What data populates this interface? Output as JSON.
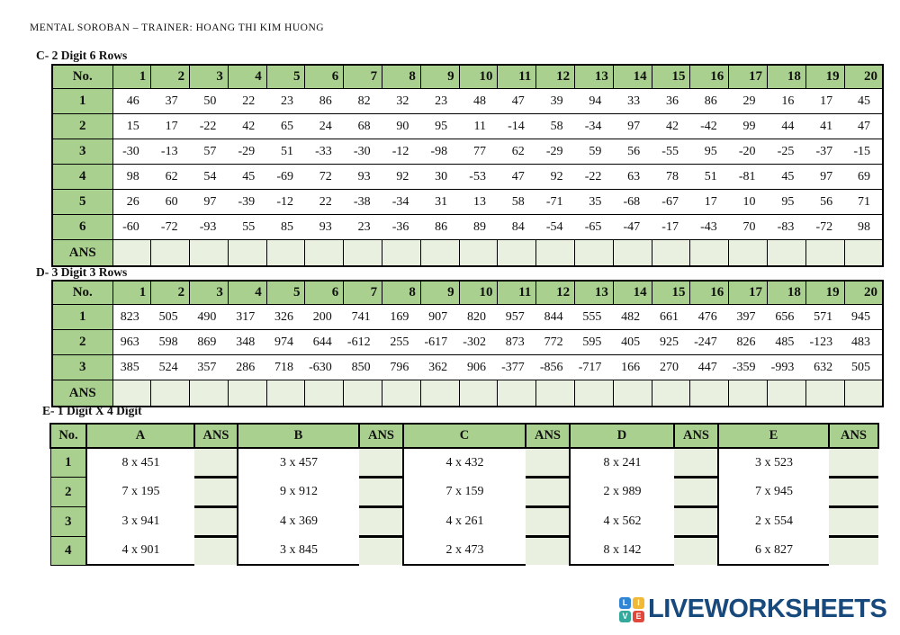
{
  "page": {
    "title": "MENTAL SOROBAN – TRAINER: HOANG THI KIM HUONG"
  },
  "colors": {
    "header_green": "#a9d08e",
    "ans_green": "#e9f0df",
    "border": "#000000",
    "logo_navy": "#17497d"
  },
  "table_c": {
    "section_label": "C- 2 Digit 6 Rows",
    "no_header": "No.",
    "ans_label": "ANS",
    "columns": [
      "1",
      "2",
      "3",
      "4",
      "5",
      "6",
      "7",
      "8",
      "9",
      "10",
      "11",
      "12",
      "13",
      "14",
      "15",
      "16",
      "17",
      "18",
      "19",
      "20"
    ],
    "rows": [
      {
        "label": "1",
        "values": [
          46,
          37,
          50,
          22,
          23,
          86,
          82,
          32,
          23,
          48,
          47,
          39,
          94,
          33,
          36,
          86,
          29,
          16,
          17,
          45
        ]
      },
      {
        "label": "2",
        "values": [
          15,
          17,
          -22,
          42,
          65,
          24,
          68,
          90,
          95,
          11,
          -14,
          58,
          -34,
          97,
          42,
          -42,
          99,
          44,
          41,
          47
        ]
      },
      {
        "label": "3",
        "values": [
          -30,
          -13,
          57,
          -29,
          51,
          -33,
          -30,
          -12,
          -98,
          77,
          62,
          -29,
          59,
          56,
          -55,
          95,
          -20,
          -25,
          -37,
          -15
        ]
      },
      {
        "label": "4",
        "values": [
          98,
          62,
          54,
          45,
          -69,
          72,
          93,
          92,
          30,
          -53,
          47,
          92,
          -22,
          63,
          78,
          51,
          -81,
          45,
          97,
          69
        ]
      },
      {
        "label": "5",
        "values": [
          26,
          60,
          97,
          -39,
          -12,
          22,
          -38,
          -34,
          31,
          13,
          58,
          -71,
          35,
          -68,
          -67,
          17,
          10,
          95,
          56,
          71
        ]
      },
      {
        "label": "6",
        "values": [
          -60,
          -72,
          -93,
          55,
          85,
          93,
          23,
          -36,
          86,
          89,
          84,
          -54,
          -65,
          -47,
          -17,
          -43,
          70,
          -83,
          -72,
          98
        ]
      }
    ]
  },
  "table_d": {
    "section_label": "D- 3 Digit 3 Rows",
    "no_header": "No.",
    "ans_label": "ANS",
    "columns": [
      "1",
      "2",
      "3",
      "4",
      "5",
      "6",
      "7",
      "8",
      "9",
      "10",
      "11",
      "12",
      "13",
      "14",
      "15",
      "16",
      "17",
      "18",
      "19",
      "20"
    ],
    "rows": [
      {
        "label": "1",
        "values": [
          823,
          505,
          490,
          317,
          326,
          200,
          741,
          169,
          907,
          820,
          957,
          844,
          555,
          482,
          661,
          476,
          397,
          656,
          571,
          945
        ]
      },
      {
        "label": "2",
        "values": [
          963,
          598,
          869,
          348,
          974,
          644,
          -612,
          255,
          -617,
          -302,
          873,
          772,
          595,
          405,
          925,
          -247,
          826,
          485,
          -123,
          483
        ]
      },
      {
        "label": "3",
        "values": [
          385,
          524,
          357,
          286,
          718,
          -630,
          850,
          796,
          362,
          906,
          -377,
          -856,
          -717,
          166,
          270,
          447,
          -359,
          -993,
          632,
          505
        ]
      }
    ]
  },
  "table_e": {
    "section_label": "E- 1 Digit X 4 Digit",
    "no_header": "No.",
    "ans_header": "ANS",
    "group_headers": [
      "A",
      "B",
      "C",
      "D",
      "E"
    ],
    "rows": [
      {
        "label": "1",
        "expressions": [
          "8 x 451",
          "3 x 457",
          "4 x 432",
          "8 x 241",
          "3 x 523"
        ]
      },
      {
        "label": "2",
        "expressions": [
          "7 x 195",
          "9 x 912",
          "7 x 159",
          "2 x 989",
          "7 x 945"
        ]
      },
      {
        "label": "3",
        "expressions": [
          "3 x 941",
          "4 x 369",
          "4 x 261",
          "4 x 562",
          "2 x 554"
        ]
      },
      {
        "label": "4",
        "expressions": [
          "4 x 901",
          "3 x 845",
          "2 x 473",
          "8 x 142",
          "6 x 827"
        ]
      }
    ]
  },
  "logo": {
    "text": "LIVEWORKSHEETS",
    "squares": [
      {
        "letter": "L",
        "color": "#2f86d6"
      },
      {
        "letter": "I",
        "color": "#f2b936"
      },
      {
        "letter": "V",
        "color": "#33a99b"
      },
      {
        "letter": "E",
        "color": "#e0483c"
      }
    ]
  }
}
